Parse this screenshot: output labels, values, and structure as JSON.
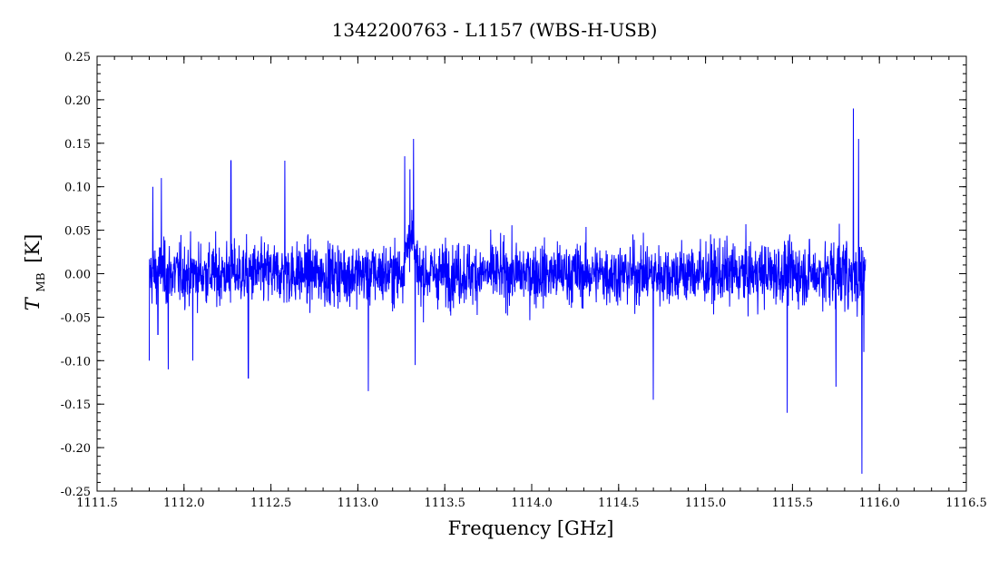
{
  "chart_data": {
    "type": "line",
    "title": "1342200763 - L1157 (WBS-H-USB)",
    "xlabel": "Frequency [GHz]",
    "ylabel_main": "T",
    "ylabel_sub": "MB",
    "ylabel_unit": "[K]",
    "xlim": [
      1111.5,
      1116.5
    ],
    "ylim": [
      -0.25,
      0.25
    ],
    "xticks": [
      1111.5,
      1112.0,
      1112.5,
      1113.0,
      1113.5,
      1114.0,
      1114.5,
      1115.0,
      1115.5,
      1116.0,
      1116.5
    ],
    "xtick_labels": [
      "1111.5",
      "1112.0",
      "1112.5",
      "1113.0",
      "1113.5",
      "1114.0",
      "1114.5",
      "1115.0",
      "1115.5",
      "1116.0",
      "1116.5"
    ],
    "yticks": [
      -0.25,
      -0.2,
      -0.15,
      -0.1,
      -0.05,
      0.0,
      0.05,
      0.1,
      0.15,
      0.2,
      0.25
    ],
    "ytick_labels": [
      "-0.25",
      "-0.20",
      "-0.15",
      "-0.10",
      "-0.05",
      "0.00",
      "0.05",
      "0.10",
      "0.15",
      "0.20",
      "0.25"
    ],
    "grid": false,
    "series": [
      {
        "color": "#0000ff",
        "x_range": [
          1111.8,
          1115.92
        ],
        "description_points": [
          {
            "x": 1111.8,
            "y": -0.1
          },
          {
            "x": 1111.82,
            "y": 0.1
          },
          {
            "x": 1111.85,
            "y": -0.07
          },
          {
            "x": 1111.87,
            "y": 0.11
          },
          {
            "x": 1111.91,
            "y": -0.11
          },
          {
            "x": 1112.05,
            "y": -0.1
          },
          {
            "x": 1112.27,
            "y": 0.13
          },
          {
            "x": 1112.37,
            "y": -0.12
          },
          {
            "x": 1112.58,
            "y": 0.13
          },
          {
            "x": 1113.06,
            "y": -0.135
          },
          {
            "x": 1113.27,
            "y": 0.135
          },
          {
            "x": 1113.3,
            "y": 0.12
          },
          {
            "x": 1113.32,
            "y": 0.155
          },
          {
            "x": 1113.33,
            "y": -0.105
          },
          {
            "x": 1114.7,
            "y": -0.145
          },
          {
            "x": 1115.47,
            "y": -0.16
          },
          {
            "x": 1115.75,
            "y": -0.13
          },
          {
            "x": 1115.85,
            "y": 0.19
          },
          {
            "x": 1115.88,
            "y": 0.155
          },
          {
            "x": 1115.9,
            "y": -0.23
          },
          {
            "x": 1115.91,
            "y": -0.09
          }
        ],
        "baseline": 0.0,
        "noise_rms": 0.03
      }
    ]
  }
}
